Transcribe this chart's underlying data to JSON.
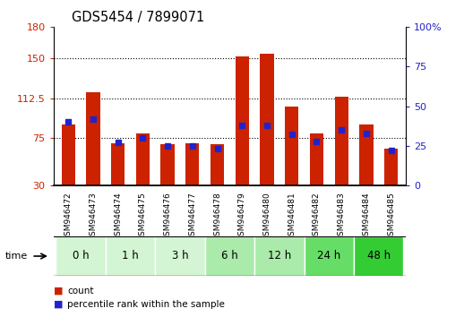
{
  "title": "GDS5454 / 7899071",
  "samples": [
    "GSM946472",
    "GSM946473",
    "GSM946474",
    "GSM946475",
    "GSM946476",
    "GSM946477",
    "GSM946478",
    "GSM946479",
    "GSM946480",
    "GSM946481",
    "GSM946482",
    "GSM946483",
    "GSM946484",
    "GSM946485"
  ],
  "count_values": [
    88,
    118,
    70,
    79,
    69,
    70,
    69,
    152,
    155,
    105,
    79,
    114,
    88,
    65
  ],
  "percentile_values": [
    40,
    42,
    27,
    30,
    25,
    25,
    23,
    38,
    38,
    32,
    28,
    35,
    33,
    22
  ],
  "time_groups": [
    {
      "label": "0 h",
      "indices": [
        0,
        1
      ]
    },
    {
      "label": "1 h",
      "indices": [
        2,
        3
      ]
    },
    {
      "label": "3 h",
      "indices": [
        4,
        5
      ]
    },
    {
      "label": "6 h",
      "indices": [
        6,
        7
      ]
    },
    {
      "label": "12 h",
      "indices": [
        8,
        9
      ]
    },
    {
      "label": "24 h",
      "indices": [
        10,
        11
      ]
    },
    {
      "label": "48 h",
      "indices": [
        12,
        13
      ]
    }
  ],
  "group_colors": [
    "#d4f5d4",
    "#d4f5d4",
    "#d4f5d4",
    "#aaeaaa",
    "#aaeaaa",
    "#66dd66",
    "#33cc33"
  ],
  "left_ylim": [
    30,
    180
  ],
  "left_yticks": [
    30,
    75,
    112.5,
    150,
    180
  ],
  "right_ylim": [
    0,
    100
  ],
  "right_yticks": [
    0,
    25,
    50,
    75,
    100
  ],
  "bar_color": "#cc2200",
  "marker_color": "#2222cc",
  "bg_color": "#ffffff",
  "grid_ticks": [
    75,
    112.5,
    150
  ],
  "bar_width": 0.55
}
